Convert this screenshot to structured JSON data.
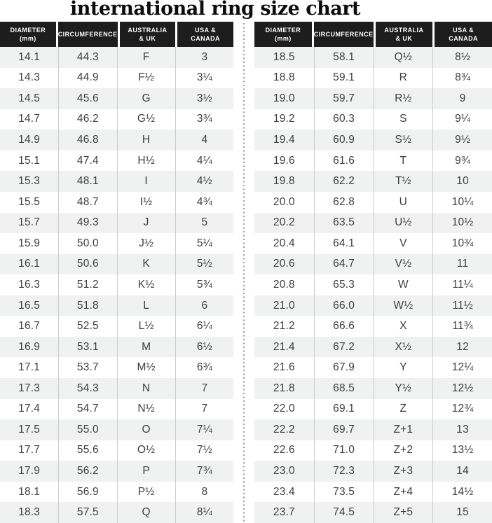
{
  "title": "international ring size chart",
  "colors": {
    "header_bg": "#1d1d1d",
    "header_text": "#ffffff",
    "row_stripe": "#f0f1f1",
    "body_text": "#3e3e3e",
    "column_border": "#cccccc",
    "divider_dots": "#9b9b9b",
    "title_color": "#0d0d0d"
  },
  "chart_data": {
    "type": "table",
    "title": "international ring size chart",
    "columns": [
      [
        "DIAMETER",
        "(mm)"
      ],
      [
        "CIRCUMFERENCE",
        ""
      ],
      [
        "AUSTRALIA",
        "& UK"
      ],
      [
        "USA &",
        "CANADA"
      ]
    ],
    "left_rows": [
      [
        "14.1",
        "44.3",
        "F",
        "3"
      ],
      [
        "14.3",
        "44.9",
        "F½",
        "3¼"
      ],
      [
        "14.5",
        "45.6",
        "G",
        "3½"
      ],
      [
        "14.7",
        "46.2",
        "G½",
        "3¾"
      ],
      [
        "14.9",
        "46.8",
        "H",
        "4"
      ],
      [
        "15.1",
        "47.4",
        "H½",
        "4¼"
      ],
      [
        "15.3",
        "48.1",
        "I",
        "4½"
      ],
      [
        "15.5",
        "48.7",
        "I½",
        "4¾"
      ],
      [
        "15.7",
        "49.3",
        "J",
        "5"
      ],
      [
        "15.9",
        "50.0",
        "J½",
        "5¼"
      ],
      [
        "16.1",
        "50.6",
        "K",
        "5½"
      ],
      [
        "16.3",
        "51.2",
        "K½",
        "5¾"
      ],
      [
        "16.5",
        "51.8",
        "L",
        "6"
      ],
      [
        "16.7",
        "52.5",
        "L½",
        "6¼"
      ],
      [
        "16.9",
        "53.1",
        "M",
        "6½"
      ],
      [
        "17.1",
        "53.7",
        "M½",
        "6¾"
      ],
      [
        "17.3",
        "54.3",
        "N",
        "7"
      ],
      [
        "17.4",
        "54.7",
        "N½",
        "7"
      ],
      [
        "17.5",
        "55.0",
        "O",
        "7¼"
      ],
      [
        "17.7",
        "55.6",
        "O½",
        "7½"
      ],
      [
        "17.9",
        "56.2",
        "P",
        "7¾"
      ],
      [
        "18.1",
        "56.9",
        "P½",
        "8"
      ],
      [
        "18.3",
        "57.5",
        "Q",
        "8¼"
      ]
    ],
    "right_rows": [
      [
        "18.5",
        "58.1",
        "Q½",
        "8½"
      ],
      [
        "18.8",
        "59.1",
        "R",
        "8¾"
      ],
      [
        "19.0",
        "59.7",
        "R½",
        "9"
      ],
      [
        "19.2",
        "60.3",
        "S",
        "9¼"
      ],
      [
        "19.4",
        "60.9",
        "S½",
        "9½"
      ],
      [
        "19.6",
        "61.6",
        "T",
        "9¾"
      ],
      [
        "19.8",
        "62.2",
        "T½",
        "10"
      ],
      [
        "20.0",
        "62.8",
        "U",
        "10¼"
      ],
      [
        "20.2",
        "63.5",
        "U½",
        "10½"
      ],
      [
        "20.4",
        "64.1",
        "V",
        "10¾"
      ],
      [
        "20.6",
        "64.7",
        "V½",
        "11"
      ],
      [
        "20.8",
        "65.3",
        "W",
        "11¼"
      ],
      [
        "21.0",
        "66.0",
        "W½",
        "11½"
      ],
      [
        "21.2",
        "66.6",
        "X",
        "11¾"
      ],
      [
        "21.4",
        "67.2",
        "X½",
        "12"
      ],
      [
        "21.6",
        "67.9",
        "Y",
        "12¼"
      ],
      [
        "21.8",
        "68.5",
        "Y½",
        "12½"
      ],
      [
        "22.0",
        "69.1",
        "Z",
        "12¾"
      ],
      [
        "22.2",
        "69.7",
        "Z+1",
        "13"
      ],
      [
        "22.6",
        "71.0",
        "Z+2",
        "13½"
      ],
      [
        "23.0",
        "72.3",
        "Z+3",
        "14"
      ],
      [
        "23.4",
        "73.5",
        "Z+4",
        "14½"
      ],
      [
        "23.7",
        "74.5",
        "Z+5",
        "15"
      ]
    ]
  }
}
